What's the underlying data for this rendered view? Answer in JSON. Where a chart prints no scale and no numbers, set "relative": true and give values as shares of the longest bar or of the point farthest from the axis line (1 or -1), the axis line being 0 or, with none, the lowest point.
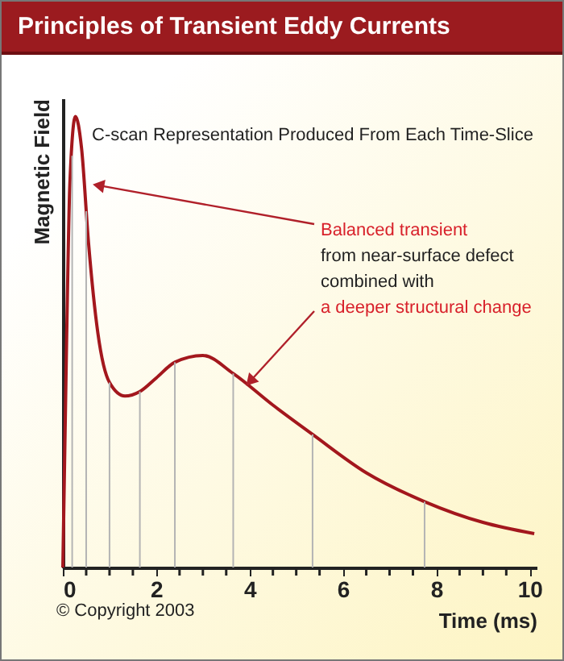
{
  "chart_data": {
    "type": "line",
    "title": "Principles of Transient Eddy Currents",
    "xlabel": "Time (ms)",
    "ylabel": "Magnetic Field",
    "relative": true,
    "x": [
      0,
      0.08,
      0.15,
      0.27,
      0.4,
      0.55,
      0.75,
      1.0,
      1.33,
      1.65,
      2.0,
      2.4,
      3.0,
      3.65,
      4.5,
      5.35,
      6.5,
      7.75,
      9,
      10.1
    ],
    "series": [
      {
        "color": "#a3171d",
        "values": [
          0,
          0.5,
          0.85,
          1,
          0.93,
          0.72,
          0.52,
          0.41,
          0.38,
          0.39,
          0.42,
          0.455,
          0.47,
          0.43,
          0.36,
          0.295,
          0.21,
          0.146,
          0.1,
          0.075
        ]
      }
    ],
    "xlim": [
      0,
      10.15
    ],
    "xticks": [
      0,
      {
        "value": 0.5,
        "label": null
      },
      {
        "value": 1,
        "label": null
      },
      {
        "value": 1.5,
        "label": null
      },
      2,
      {
        "value": 2.5,
        "label": null
      },
      {
        "value": 3,
        "label": null
      },
      {
        "value": 3.5,
        "label": null
      },
      4,
      {
        "value": 4.5,
        "label": null
      },
      {
        "value": 5,
        "label": null
      },
      {
        "value": 5.5,
        "label": null
      },
      6,
      {
        "value": 6.5,
        "label": null
      },
      {
        "value": 7,
        "label": null
      },
      {
        "value": 7.5,
        "label": null
      },
      8,
      {
        "value": 8.5,
        "label": null
      },
      {
        "value": 9,
        "label": null
      },
      {
        "value": 9.5,
        "label": null
      },
      10
    ],
    "ref_lines": [
      {
        "axis": "x",
        "value": 0.2,
        "color": "#b4b4b4"
      },
      {
        "axis": "x",
        "value": 0.5,
        "color": "#b4b4b4"
      },
      {
        "axis": "x",
        "value": 1.0,
        "color": "#b4b4b4"
      },
      {
        "axis": "x",
        "value": 1.65,
        "color": "#b4b4b4"
      },
      {
        "axis": "x",
        "value": 2.4,
        "color": "#b4b4b4"
      },
      {
        "axis": "x",
        "value": 3.65,
        "color": "#b4b4b4"
      },
      {
        "axis": "x",
        "value": 5.35,
        "color": "#b4b4b4"
      },
      {
        "axis": "x",
        "value": 7.75,
        "color": "#b4b4b4"
      }
    ],
    "annotations": [
      "C-scan Representation Produced From Each Time-Slice",
      {
        "text": "Balanced transient",
        "x": 0.6,
        "y": 0.85
      },
      "from near-surface defect",
      "combined with",
      {
        "text": "a deeper structural change",
        "x": 3.9,
        "y": 0.4
      },
      "© Copyright 2003"
    ],
    "grid": false,
    "marker": "none",
    "line_style": "solid"
  }
}
